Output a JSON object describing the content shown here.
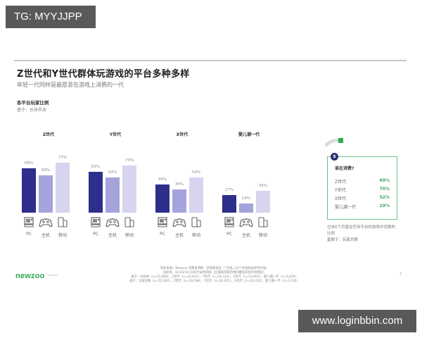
{
  "watermarks": {
    "top": "TG: MYYJJPP",
    "bottom": "www.loginbbin.com"
  },
  "header": {
    "title": "Z世代和Y世代群体玩游戏的平台多种多样",
    "subtitle": "年轻一代同样是最愿意在游戏上消费的一代"
  },
  "section": {
    "title": "各平台玩家比例",
    "base": "基于：总体样本"
  },
  "colors": {
    "pc": "#2e2e8c",
    "console": "#a5a3dc",
    "mobile": "#d6d4ef",
    "accent_green": "#3aa45c",
    "panel_border": "#6bbf8a",
    "brand": "#2ea84e"
  },
  "chart_data": {
    "type": "bar",
    "title": "各平台玩家比例",
    "subtitle": "基于：总体样本",
    "categories": [
      "PC",
      "主机",
      "移动"
    ],
    "category_icons": [
      "pc-icon",
      "gamepad-icon",
      "mobile-devices-icon"
    ],
    "groups": [
      {
        "name": "Z世代",
        "values": [
          68,
          58,
          77
        ],
        "labels": [
          "68%",
          "58%",
          "77%"
        ]
      },
      {
        "name": "Y世代",
        "values": [
          63,
          54,
          73
        ],
        "labels": [
          "63%",
          "54%",
          "73%"
        ]
      },
      {
        "name": "X世代",
        "values": [
          44,
          36,
          54
        ],
        "labels": [
          "44%",
          "36%",
          "54%"
        ]
      },
      {
        "name": "婴儿潮一代",
        "values": [
          27,
          14,
          34
        ],
        "labels": [
          "27%",
          "14%",
          "34%"
        ]
      }
    ],
    "series": [
      {
        "name": "PC",
        "values": [
          68,
          63,
          44,
          27
        ]
      },
      {
        "name": "主机",
        "values": [
          58,
          54,
          36,
          14
        ]
      },
      {
        "name": "移动",
        "values": [
          77,
          73,
          54,
          34
        ]
      }
    ],
    "unit": "%",
    "ylim": [
      0,
      100
    ],
    "grid": false,
    "legend": "icons-below-bars"
  },
  "panel": {
    "badge": "$",
    "title": "谁在消费?",
    "rows": [
      {
        "label": "Z世代",
        "value": "69%"
      },
      {
        "label": "Y世代",
        "value": "70%"
      },
      {
        "label": "X世代",
        "value": "52%"
      },
      {
        "label": "婴儿潮一代",
        "value": "29%"
      }
    ],
    "note_line1": "过去6个月曾在任何平台的游戏中消费的",
    "note_line2": "比例",
    "note_line3": "基数于：玩家总数"
  },
  "footer": {
    "logo": "newzoo",
    "source": "资料来源：Newzoo 消费者洞察 - 游戏和电竞（“全球=33个市场的加权平均值）",
    "sample": "总样本：10-65/10-50岁代表性网民（区域和年龄范围的覆盖率因市场而异）",
    "base1": "基于：总样本（n=72,068），Z世代（n=22,652），Y世代（n=26,123），X世代（n=16,854），婴儿潮一代（n=6,439）",
    "base2": "基于：玩家总数（n=52,000），Z世代（n=18,598），Y世代（n=20,451），X世代（n=10,416），婴儿潮一代（n=2,535）",
    "page_number": "7"
  }
}
